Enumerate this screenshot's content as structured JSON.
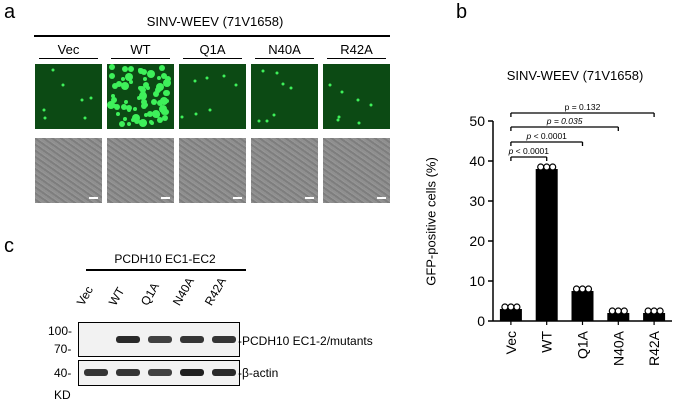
{
  "panel_a": {
    "letter": "a",
    "virus_title": "SINV-WEEV (71V1658)",
    "columns": [
      "Vec",
      "WT",
      "Q1A",
      "N40A",
      "R42A"
    ],
    "rows": [
      "GFP fluorescence",
      "brightfield"
    ]
  },
  "panel_b": {
    "letter": "b",
    "chart_data": {
      "type": "bar",
      "title": "SINV-WEEV (71V1658)",
      "categories": [
        "Vec",
        "WT",
        "Q1A",
        "N40A",
        "R42A"
      ],
      "values": [
        3,
        38,
        7.5,
        2,
        2
      ],
      "points": [
        [
          3,
          3,
          3
        ],
        [
          38,
          38,
          38
        ],
        [
          7.5,
          7.5,
          7.5
        ],
        [
          2,
          2,
          2
        ],
        [
          2,
          2,
          2
        ]
      ],
      "ylabel": "GFP-positive cells (%)",
      "ylim": [
        0,
        50
      ],
      "yticks": [
        "0",
        "10",
        "20",
        "30",
        "40",
        "50"
      ],
      "comparisons": [
        {
          "from": "Vec",
          "to": "WT",
          "label": "p < 0.0001"
        },
        {
          "from": "Vec",
          "to": "Q1A",
          "label": "p < 0.0001"
        },
        {
          "from": "Vec",
          "to": "N40A",
          "label": "p = 0.035"
        },
        {
          "from": "Vec",
          "to": "R42A",
          "label": "p = 0.132"
        }
      ]
    }
  },
  "panel_c": {
    "letter": "c",
    "construct_title": "PCDH10 EC1-EC2",
    "lanes": [
      "Vec",
      "WT",
      "Q1A",
      "N40A",
      "R42A"
    ],
    "mw_top": [
      "100-",
      "70-"
    ],
    "mw_bottom": "40-",
    "unit": "KD",
    "band_top": "-PCDH10 EC1-2/mutants",
    "band_bottom": "-β-actin",
    "top_band_intensity": [
      0,
      0.9,
      0.8,
      0.85,
      0.85
    ],
    "bottom_band_intensity": [
      0.85,
      0.85,
      0.8,
      0.95,
      0.9
    ]
  }
}
